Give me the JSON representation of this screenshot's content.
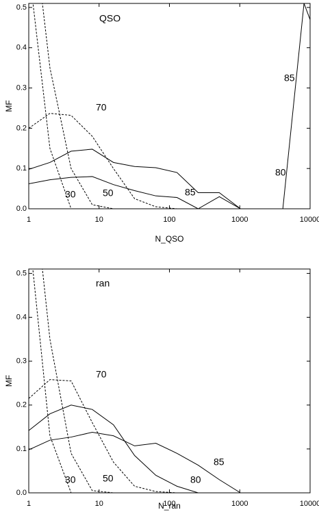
{
  "chart_data": [
    {
      "type": "line",
      "title": "QSO",
      "xlabel": "N_QSO",
      "ylabel": "MF",
      "xscale": "log",
      "xlim": [
        1,
        10000
      ],
      "xticks": [
        1,
        10,
        100,
        1000,
        10000
      ],
      "ylim": [
        0,
        0.51
      ],
      "yticks": [
        {
          "value": 0,
          "label": "0.0"
        },
        0.1,
        0.2,
        0.3,
        0.4,
        0.5
      ],
      "series": [
        {
          "name": "30",
          "color": "#000",
          "dashed": true,
          "x": [
            1,
            2,
            4
          ],
          "values": [
            0.6,
            0.15,
            0.0
          ]
        },
        {
          "name": "50",
          "color": "#000",
          "dashed": true,
          "x": [
            1,
            2,
            4,
            8,
            16
          ],
          "values": [
            0.8,
            0.35,
            0.1,
            0.01,
            0.0
          ]
        },
        {
          "name": "70",
          "color": "#000",
          "dashed": true,
          "x": [
            1,
            2,
            4,
            8,
            16,
            32,
            64,
            128
          ],
          "values": [
            0.2,
            0.237,
            0.232,
            0.18,
            0.1,
            0.025,
            0.005,
            0.0
          ]
        },
        {
          "name": "80",
          "color": "#000",
          "dashed": false,
          "x": [
            1,
            2,
            4,
            8,
            16,
            32,
            64,
            128,
            256,
            512,
            1024
          ],
          "values": [
            0.098,
            0.115,
            0.143,
            0.148,
            0.115,
            0.105,
            0.102,
            0.09,
            0.04,
            0.04,
            0.0
          ]
        },
        {
          "name": "85",
          "color": "#000",
          "dashed": false,
          "x": [
            1,
            2,
            4,
            8,
            16,
            32,
            64,
            128,
            256,
            512,
            1024
          ],
          "values": [
            0.062,
            0.072,
            0.078,
            0.08,
            0.06,
            0.045,
            0.032,
            0.028,
            0.0,
            0.03,
            0.0
          ]
        },
        {
          "name": "85",
          "color": "#000",
          "dashed": false,
          "x": [
            1024,
            2048,
            4096,
            8192,
            16384
          ],
          "values": [
            0.0,
            0.0,
            0.0,
            0.51,
            0.37
          ]
        }
      ]
    },
    {
      "type": "line",
      "title": "ran",
      "xlabel": "N_ran",
      "ylabel": "MF",
      "xscale": "log",
      "xlim": [
        1,
        10000
      ],
      "xticks": [
        1,
        10,
        100,
        1000,
        10000
      ],
      "ylim": [
        0,
        0.51
      ],
      "yticks": [
        {
          "value": 0,
          "label": "0.0"
        },
        0.1,
        0.2,
        0.3,
        0.4,
        0.5
      ],
      "series": [
        {
          "name": "30",
          "color": "#000",
          "dashed": true,
          "x": [
            1,
            2,
            4
          ],
          "values": [
            0.6,
            0.13,
            0.0
          ]
        },
        {
          "name": "50",
          "color": "#000",
          "dashed": true,
          "x": [
            1,
            2,
            4,
            8,
            16
          ],
          "values": [
            0.8,
            0.35,
            0.09,
            0.005,
            0.0
          ]
        },
        {
          "name": "70",
          "color": "#000",
          "dashed": true,
          "x": [
            1,
            2,
            4,
            8,
            16,
            32,
            64,
            128
          ],
          "values": [
            0.215,
            0.258,
            0.255,
            0.16,
            0.07,
            0.015,
            0.003,
            0.0
          ]
        },
        {
          "name": "80",
          "color": "#000",
          "dashed": false,
          "x": [
            1,
            2,
            4,
            8,
            16,
            32,
            64,
            128,
            256
          ],
          "values": [
            0.142,
            0.18,
            0.2,
            0.19,
            0.155,
            0.085,
            0.04,
            0.015,
            0.0
          ]
        },
        {
          "name": "85",
          "color": "#000",
          "dashed": false,
          "x": [
            1,
            2,
            4,
            8,
            16,
            32,
            64,
            128,
            256,
            512,
            1024
          ],
          "values": [
            0.098,
            0.12,
            0.127,
            0.138,
            0.13,
            0.107,
            0.113,
            0.09,
            0.063,
            0.03,
            0.0
          ]
        }
      ]
    }
  ]
}
